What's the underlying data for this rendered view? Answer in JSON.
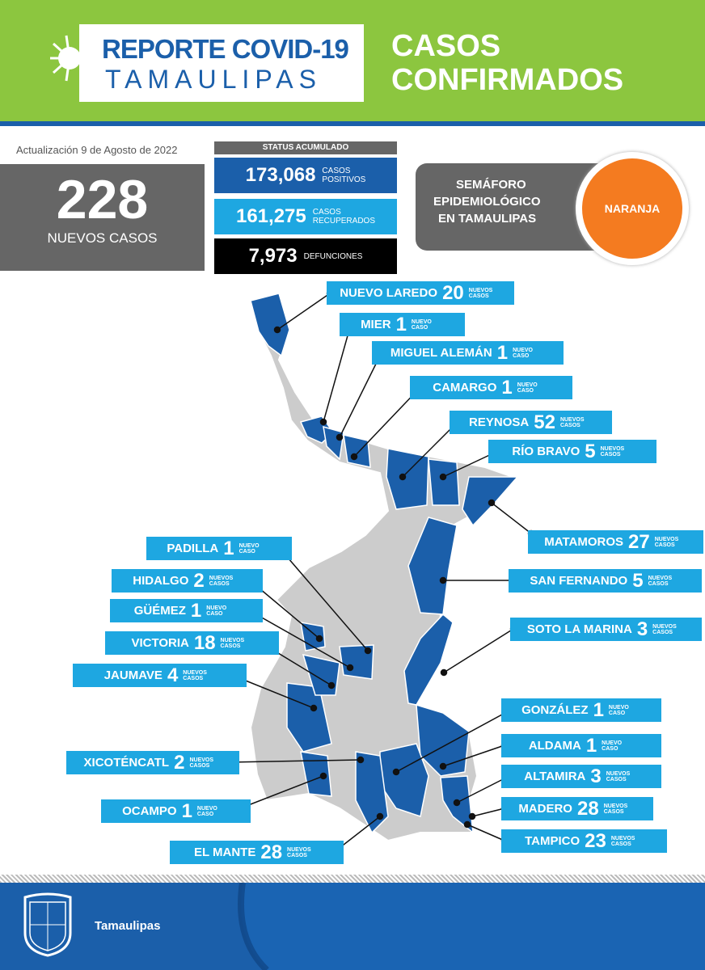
{
  "header": {
    "title_line1": "REPORTE COVID-19",
    "title_line2": "TAMAULIPAS",
    "subtitle_line1": "CASOS",
    "subtitle_line2": "CONFIRMADOS"
  },
  "update": "Actualización  9 de Agosto de 2022",
  "new_cases": {
    "value": "228",
    "label": "NUEVOS CASOS"
  },
  "status": {
    "title": "STATUS ACUMULADO",
    "rows": [
      {
        "value": "173,068",
        "label1": "CASOS",
        "label2": "POSITIVOS",
        "color": "#1b5faa"
      },
      {
        "value": "161,275",
        "label1": "CASOS",
        "label2": "RECUPERADOS",
        "color": "#1ea7e1"
      },
      {
        "value": "7,973",
        "label1": "DEFUNCIONES",
        "label2": "",
        "color": "#000000"
      }
    ]
  },
  "semaforo": {
    "line1": "SEMÁFORO",
    "line2": "EPIDEMIOLÓGICO",
    "line3": "EN TAMAULIPAS",
    "level": "NARANJA",
    "level_color": "#f47b20"
  },
  "municipios": [
    {
      "name": "NUEVO LAREDO",
      "count": "20",
      "suffix": "NUEVOS CASOS"
    },
    {
      "name": "MIER",
      "count": "1",
      "suffix": "NUEVO CASO"
    },
    {
      "name": "MIGUEL ALEMÁN",
      "count": "1",
      "suffix": "NUEVO CASO"
    },
    {
      "name": "CAMARGO",
      "count": "1",
      "suffix": "NUEVO CASO"
    },
    {
      "name": "REYNOSA",
      "count": "52",
      "suffix": "NUEVOS CASOS"
    },
    {
      "name": "RÍO BRAVO",
      "count": "5",
      "suffix": "NUEVOS CASOS"
    },
    {
      "name": "MATAMOROS",
      "count": "27",
      "suffix": "NUEVOS CASOS"
    },
    {
      "name": "SAN FERNANDO",
      "count": "5",
      "suffix": "NUEVOS CASOS"
    },
    {
      "name": "SOTO LA MARINA",
      "count": "3",
      "suffix": "NUEVOS CASOS"
    },
    {
      "name": "GONZÁLEZ",
      "count": "1",
      "suffix": "NUEVO CASO"
    },
    {
      "name": "ALDAMA",
      "count": "1",
      "suffix": "NUEVO CASO"
    },
    {
      "name": "ALTAMIRA",
      "count": "3",
      "suffix": "NUEVOS CASOS"
    },
    {
      "name": "MADERO",
      "count": "28",
      "suffix": "NUEVOS CASOS"
    },
    {
      "name": "TAMPICO",
      "count": "23",
      "suffix": "NUEVOS CASOS"
    },
    {
      "name": "PADILLA",
      "count": "1",
      "suffix": "NUEVO CASO"
    },
    {
      "name": "HIDALGO",
      "count": "2",
      "suffix": "NUEVOS CASOS"
    },
    {
      "name": "GÜÉMEZ",
      "count": "1",
      "suffix": "NUEVO CASO"
    },
    {
      "name": "VICTORIA",
      "count": "18",
      "suffix": "NUEVOS CASOS"
    },
    {
      "name": "JAUMAVE",
      "count": "4",
      "suffix": "NUEVOS CASOS"
    },
    {
      "name": "XICOTÉNCATL",
      "count": "2",
      "suffix": "NUEVOS CASOS"
    },
    {
      "name": "OCAMPO",
      "count": "1",
      "suffix": "NUEVO CASO"
    },
    {
      "name": "EL MANTE",
      "count": "28",
      "suffix": "NUEVOS CASOS"
    }
  ],
  "colors": {
    "green": "#8cc63f",
    "blue": "#1b5faa",
    "light_blue": "#1ea7e1",
    "gray": "#666666",
    "map_gray": "#cccccc"
  },
  "footer": {
    "brand": "Tamaulipas"
  }
}
